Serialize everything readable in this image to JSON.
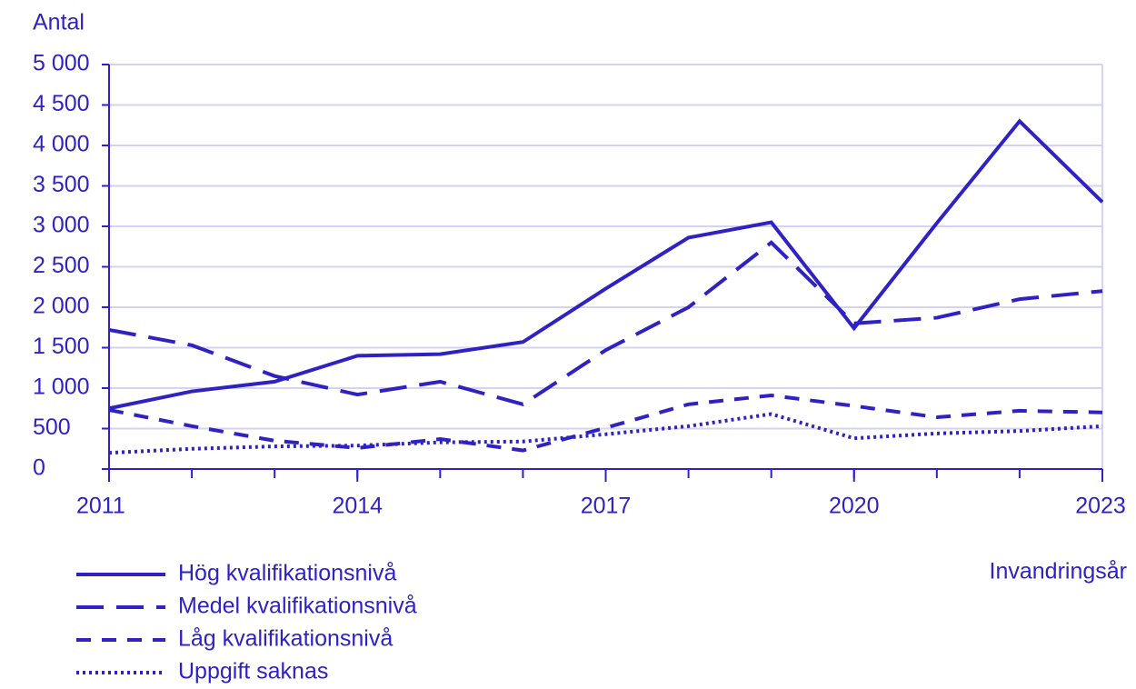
{
  "chart_data": {
    "type": "line",
    "y_label": "Antal",
    "x_label": "Invandringsår",
    "x": [
      2011,
      2012,
      2013,
      2014,
      2015,
      2016,
      2017,
      2018,
      2019,
      2020,
      2021,
      2022,
      2023
    ],
    "xlim": [
      2011,
      2023
    ],
    "xticks": [
      2011,
      2014,
      2017,
      2020,
      2023
    ],
    "ylim": [
      0,
      5000
    ],
    "yticks": [
      0,
      500,
      {
        "value": 1000,
        "label": "1 000"
      },
      {
        "value": 1500,
        "label": "1 500"
      },
      {
        "value": 2000,
        "label": "2 000"
      },
      {
        "value": 2500,
        "label": "2 500"
      },
      {
        "value": 3000,
        "label": "3 000"
      },
      {
        "value": 3500,
        "label": "3 500"
      },
      {
        "value": 4000,
        "label": "4 000"
      },
      {
        "value": 4500,
        "label": "4 500"
      },
      {
        "value": 5000,
        "label": "5 000"
      }
    ],
    "grid": true,
    "legend": "bottom-left",
    "series": [
      {
        "name": "Hög kvalifikationsnivå",
        "color": "#2e22c4",
        "dash": "solid",
        "values": [
          750,
          960,
          1080,
          1400,
          1420,
          1570,
          2230,
          2860,
          3050,
          1740,
          3040,
          4300,
          3300
        ]
      },
      {
        "name": "Medel kvalifikationsnivå",
        "color": "#2e22c4",
        "dash": "long-dash",
        "values": [
          1720,
          1530,
          1150,
          920,
          1080,
          800,
          1470,
          2000,
          2800,
          1800,
          1870,
          2100,
          2200
        ]
      },
      {
        "name": "Låg kvalifikationsnivå",
        "color": "#2e22c4",
        "dash": "dash",
        "values": [
          730,
          530,
          350,
          260,
          370,
          230,
          510,
          800,
          910,
          780,
          640,
          720,
          700
        ]
      },
      {
        "name": "Uppgift saknas",
        "color": "#2e22c4",
        "dash": "dot",
        "values": [
          200,
          250,
          280,
          290,
          330,
          340,
          430,
          530,
          680,
          380,
          440,
          470,
          530
        ]
      }
    ]
  }
}
